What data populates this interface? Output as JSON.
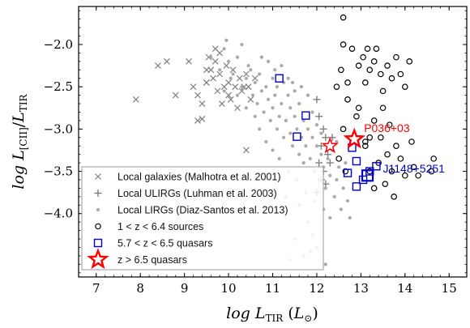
{
  "chart_data": {
    "type": "scatter",
    "xlabel": "log L_TIR (L_⊙)",
    "ylabel": "log L_[CII]/L_TIR",
    "xlim": [
      6.6,
      15.4
    ],
    "ylim": [
      -4.75,
      -1.55
    ],
    "xticks": [
      "7",
      "8",
      "9",
      "10",
      "11",
      "12",
      "13",
      "14",
      "15"
    ],
    "xtick_values": [
      7,
      8,
      9,
      10,
      11,
      12,
      13,
      14,
      15
    ],
    "yticks": [
      "−2.0",
      "−2.5",
      "−3.0",
      "−3.5",
      "−4.0"
    ],
    "ytick_values": [
      -2.0,
      -2.5,
      -3.0,
      -3.5,
      -4.0
    ],
    "grid": false,
    "legend_position": "lower-left",
    "series": [
      {
        "name": "Local galaxies (Malhotra et al. 2001)",
        "marker": "x",
        "color": "#808080",
        "points": [
          [
            7.9,
            -2.65
          ],
          [
            8.4,
            -2.25
          ],
          [
            8.6,
            -2.2
          ],
          [
            8.8,
            -2.6
          ],
          [
            9.1,
            -2.2
          ],
          [
            9.2,
            -2.5
          ],
          [
            9.3,
            -2.6
          ],
          [
            9.3,
            -2.9
          ],
          [
            9.4,
            -2.7
          ],
          [
            9.5,
            -2.3
          ],
          [
            9.5,
            -2.45
          ],
          [
            9.55,
            -2.15
          ],
          [
            9.6,
            -2.3
          ],
          [
            9.65,
            -2.4
          ],
          [
            9.7,
            -2.05
          ],
          [
            9.7,
            -2.2
          ],
          [
            9.75,
            -2.55
          ],
          [
            9.8,
            -2.1
          ],
          [
            9.8,
            -2.35
          ],
          [
            9.85,
            -2.7
          ],
          [
            9.9,
            -2.5
          ],
          [
            9.95,
            -2.25
          ],
          [
            10.0,
            -2.45
          ],
          [
            10.0,
            -2.6
          ],
          [
            10.05,
            -2.65
          ],
          [
            10.1,
            -2.3
          ],
          [
            10.15,
            -2.5
          ],
          [
            10.2,
            -2.75
          ],
          [
            10.25,
            -2.4
          ],
          [
            10.3,
            -2.55
          ],
          [
            10.35,
            -2.5
          ],
          [
            10.4,
            -2.35
          ],
          [
            10.45,
            -2.5
          ],
          [
            10.5,
            -2.65
          ],
          [
            10.6,
            -2.4
          ],
          [
            10.4,
            -3.25
          ],
          [
            9.4,
            -2.88
          ],
          [
            9.5,
            -2.45
          ]
        ]
      },
      {
        "name": "Local ULIRGs (Luhman et al. 2003)",
        "marker": "+",
        "color": "#808080",
        "points": [
          [
            12.0,
            -2.65
          ],
          [
            12.05,
            -2.85
          ],
          [
            12.15,
            -3.0
          ],
          [
            12.1,
            -3.2
          ],
          [
            12.2,
            -3.1
          ],
          [
            12.3,
            -3.4
          ],
          [
            12.05,
            -3.4
          ],
          [
            12.15,
            -3.5
          ],
          [
            12.1,
            -3.6
          ],
          [
            12.25,
            -3.3
          ],
          [
            12.0,
            -3.75
          ],
          [
            12.2,
            -3.65
          ],
          [
            12.35,
            -3.1
          ]
        ]
      },
      {
        "name": "Local LIRGs (Diaz-Santos et al. 2013)",
        "marker": "dot",
        "color": "#aaaaaa",
        "points": [
          [
            9.6,
            -2.15
          ],
          [
            9.8,
            -2.3
          ],
          [
            9.9,
            -2.05
          ],
          [
            9.95,
            -1.95
          ],
          [
            10.0,
            -2.2
          ],
          [
            10.1,
            -2.35
          ],
          [
            10.2,
            -2.15
          ],
          [
            10.3,
            -2.5
          ],
          [
            10.4,
            -2.4
          ],
          [
            10.5,
            -2.3
          ],
          [
            10.55,
            -2.6
          ],
          [
            10.6,
            -2.45
          ],
          [
            10.65,
            -2.7
          ],
          [
            10.7,
            -2.35
          ],
          [
            10.75,
            -2.55
          ],
          [
            10.8,
            -2.8
          ],
          [
            10.85,
            -2.5
          ],
          [
            10.9,
            -2.65
          ],
          [
            10.95,
            -2.9
          ],
          [
            11.0,
            -2.4
          ],
          [
            11.0,
            -2.75
          ],
          [
            11.05,
            -2.6
          ],
          [
            11.1,
            -3.0
          ],
          [
            11.1,
            -2.5
          ],
          [
            11.15,
            -2.85
          ],
          [
            11.2,
            -2.7
          ],
          [
            11.25,
            -3.1
          ],
          [
            11.25,
            -2.45
          ],
          [
            11.3,
            -2.9
          ],
          [
            11.35,
            -2.6
          ],
          [
            11.4,
            -3.05
          ],
          [
            11.4,
            -2.75
          ],
          [
            11.45,
            -3.2
          ],
          [
            11.5,
            -2.85
          ],
          [
            11.5,
            -2.55
          ],
          [
            11.55,
            -3.0
          ],
          [
            11.6,
            -3.3
          ],
          [
            11.6,
            -2.7
          ],
          [
            11.65,
            -3.1
          ],
          [
            11.7,
            -2.9
          ],
          [
            11.7,
            -3.4
          ],
          [
            11.75,
            -3.2
          ],
          [
            11.8,
            -3.0
          ],
          [
            11.8,
            -2.6
          ],
          [
            11.85,
            -3.35
          ],
          [
            11.9,
            -3.1
          ],
          [
            11.9,
            -2.8
          ],
          [
            11.95,
            -3.5
          ],
          [
            12.0,
            -3.2
          ],
          [
            12.0,
            -2.95
          ],
          [
            12.05,
            -3.6
          ],
          [
            12.1,
            -3.3
          ],
          [
            12.1,
            -3.05
          ],
          [
            12.15,
            -3.45
          ],
          [
            12.2,
            -3.7
          ],
          [
            12.25,
            -3.35
          ],
          [
            12.3,
            -3.55
          ],
          [
            12.35,
            -3.25
          ],
          [
            12.4,
            -3.8
          ],
          [
            12.45,
            -3.6
          ],
          [
            12.5,
            -3.45
          ],
          [
            12.55,
            -3.95
          ],
          [
            12.6,
            -3.7
          ],
          [
            10.3,
            -2.0
          ],
          [
            10.45,
            -2.25
          ],
          [
            10.9,
            -2.2
          ],
          [
            11.05,
            -2.3
          ],
          [
            11.2,
            -2.25
          ],
          [
            11.35,
            -2.4
          ],
          [
            11.15,
            -3.35
          ],
          [
            11.35,
            -3.5
          ],
          [
            11.55,
            -3.6
          ],
          [
            11.75,
            -3.75
          ],
          [
            11.95,
            -3.85
          ],
          [
            11.6,
            -3.9
          ],
          [
            11.8,
            -4.1
          ],
          [
            11.9,
            -4.25
          ],
          [
            11.5,
            -4.3
          ],
          [
            11.7,
            -4.5
          ],
          [
            11.4,
            -4.55
          ],
          [
            11.3,
            -3.8
          ],
          [
            12.0,
            -4.4
          ],
          [
            12.3,
            -4.05
          ],
          [
            12.15,
            -3.95
          ],
          [
            10.7,
            -3.0
          ],
          [
            10.85,
            -3.15
          ],
          [
            11.0,
            -3.25
          ],
          [
            10.6,
            -2.85
          ],
          [
            10.4,
            -2.75
          ],
          [
            10.2,
            -2.6
          ],
          [
            10.05,
            -2.4
          ],
          [
            9.9,
            -2.55
          ],
          [
            10.75,
            -2.15
          ],
          [
            11.45,
            -2.45
          ],
          [
            11.65,
            -2.5
          ],
          [
            12.45,
            -3.15
          ],
          [
            12.65,
            -3.4
          ],
          [
            12.7,
            -3.85
          ],
          [
            12.75,
            -4.05
          ],
          [
            12.2,
            -4.6
          ],
          [
            11.85,
            -4.45
          ]
        ]
      },
      {
        "name": "1 < z < 6.4 sources",
        "marker": "o",
        "color": "#000000",
        "points": [
          [
            12.6,
            -1.68
          ],
          [
            12.6,
            -2.0
          ],
          [
            12.8,
            -2.05
          ],
          [
            12.95,
            -2.25
          ],
          [
            13.05,
            -2.15
          ],
          [
            13.15,
            -2.05
          ],
          [
            13.2,
            -2.3
          ],
          [
            13.1,
            -2.45
          ],
          [
            13.3,
            -2.2
          ],
          [
            13.35,
            -2.05
          ],
          [
            13.45,
            -2.35
          ],
          [
            13.5,
            -2.55
          ],
          [
            13.6,
            -2.25
          ],
          [
            13.7,
            -2.4
          ],
          [
            13.8,
            -2.15
          ],
          [
            13.9,
            -2.35
          ],
          [
            14.0,
            -2.5
          ],
          [
            14.1,
            -2.2
          ],
          [
            13.5,
            -2.75
          ],
          [
            13.65,
            -2.95
          ],
          [
            13.3,
            -2.9
          ],
          [
            13.2,
            -3.1
          ],
          [
            13.1,
            -3.2
          ],
          [
            13.4,
            -3.4
          ],
          [
            13.6,
            -3.3
          ],
          [
            13.7,
            -3.5
          ],
          [
            13.8,
            -3.2
          ],
          [
            13.9,
            -3.35
          ],
          [
            14.0,
            -3.55
          ],
          [
            14.2,
            -3.45
          ],
          [
            14.3,
            -3.55
          ],
          [
            14.6,
            -3.5
          ],
          [
            14.65,
            -3.35
          ],
          [
            13.75,
            -3.8
          ],
          [
            13.55,
            -3.65
          ],
          [
            12.7,
            -2.45
          ],
          [
            12.55,
            -2.3
          ],
          [
            12.7,
            -2.65
          ],
          [
            12.45,
            -2.5
          ],
          [
            12.6,
            -3.0
          ],
          [
            12.5,
            -3.35
          ],
          [
            12.65,
            -3.5
          ],
          [
            12.9,
            -2.85
          ],
          [
            13.3,
            -3.7
          ],
          [
            13.2,
            -3.5
          ],
          [
            13.45,
            -3.1
          ],
          [
            14.15,
            -3.15
          ],
          [
            13.1,
            -3.15
          ],
          [
            12.95,
            -2.75
          ]
        ]
      },
      {
        "name": "5.7 < z < 6.5 quasars",
        "marker": "s",
        "color": "#0000cc",
        "points": [
          [
            11.15,
            -2.4
          ],
          [
            11.75,
            -2.84
          ],
          [
            11.55,
            -3.09
          ],
          [
            12.8,
            -3.22
          ],
          [
            12.9,
            -3.38
          ],
          [
            12.7,
            -3.52
          ],
          [
            12.9,
            -3.68
          ],
          [
            13.05,
            -3.6
          ],
          [
            13.2,
            -3.5
          ],
          [
            13.35,
            -3.44
          ],
          [
            13.15,
            -3.55
          ]
        ]
      },
      {
        "name": "z > 6.5 quasars",
        "marker": "star",
        "color": "#ff0000",
        "points": [
          [
            12.3,
            -3.2
          ],
          [
            12.85,
            -3.12
          ]
        ]
      }
    ],
    "annotations": [
      {
        "text": "P036+03",
        "color": "#ff0000",
        "x": 12.85,
        "y": -3.12
      },
      {
        "text": "J1148+5251",
        "color": "#0000cc",
        "x": 13.15,
        "y": -3.55
      }
    ]
  }
}
